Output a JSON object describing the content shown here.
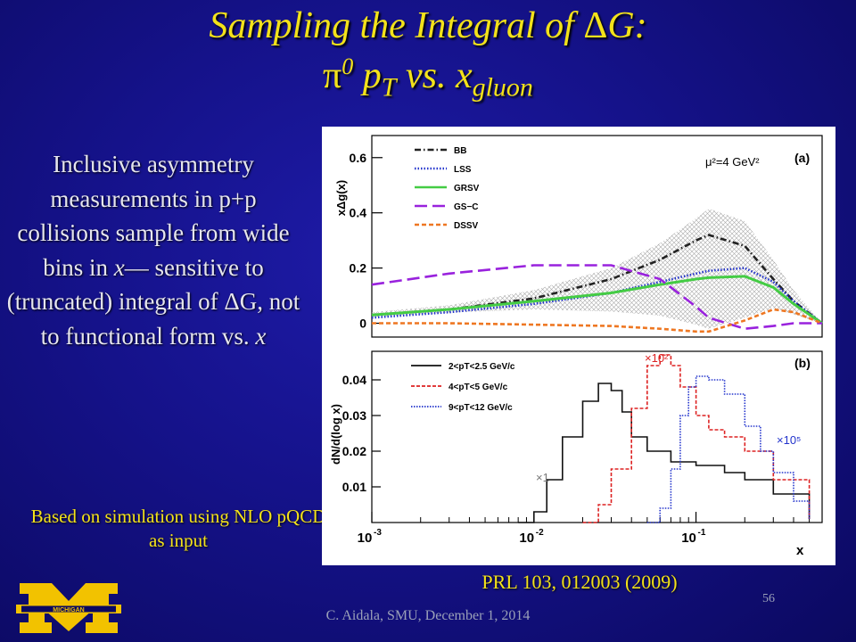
{
  "slide": {
    "title_line1_pre": "Sampling the Integral of ",
    "title_delta": "Δ",
    "title_line1_post": "G:",
    "title_pi": "π",
    "title_pi_sup": "0",
    "title_p": " p",
    "title_p_sub": "T",
    "title_vs": " vs. x",
    "title_x_sub": "gluon",
    "body_1": "Inclusive asymmetry measurements in p+p collisions sample from wide bins in ",
    "body_x1": "x",
    "body_2": "— sensitive to (truncated) integral of ",
    "body_delta": "Δ",
    "body_3": "G, not to functional form vs. ",
    "body_x2": "x",
    "note": "Based on simulation using NLO pQCD as input",
    "reference": "PRL 103, 012003 (2009)",
    "footer": "C. Aidala, SMU, December 1, 2014",
    "page_number": "56",
    "logo_text": "MICHIGAN",
    "logo_icon": "block-m-logo-icon"
  },
  "chart_data": [
    {
      "type": "line",
      "panel_label": "(a)",
      "ylabel": "xΔg(x)",
      "annotation": "μ²=4 GeV²",
      "x_scale": "log",
      "xlim": [
        0.001,
        0.6
      ],
      "ylim": [
        -0.05,
        0.68
      ],
      "yticks": [
        0,
        0.2,
        0.4,
        0.6
      ],
      "uncertainty_band": "hatched gray band around GRSV",
      "legend_position": "top-left",
      "x": [
        0.001,
        0.003,
        0.01,
        0.03,
        0.06,
        0.1,
        0.12,
        0.2,
        0.3,
        0.4,
        0.6
      ],
      "series": [
        {
          "name": "BB",
          "color": "#222222",
          "style": "dash-dot",
          "values": [
            0.03,
            0.05,
            0.09,
            0.16,
            0.23,
            0.3,
            0.32,
            0.28,
            0.16,
            0.08,
            0.0
          ]
        },
        {
          "name": "LSS",
          "color": "#2233cc",
          "style": "dotted",
          "values": [
            0.02,
            0.04,
            0.07,
            0.11,
            0.15,
            0.18,
            0.19,
            0.2,
            0.15,
            0.08,
            0.0
          ]
        },
        {
          "name": "GRSV",
          "color": "#44cc44",
          "style": "solid",
          "values": [
            0.03,
            0.05,
            0.08,
            0.11,
            0.14,
            0.16,
            0.165,
            0.17,
            0.13,
            0.07,
            0.0
          ]
        },
        {
          "name": "GS−C",
          "color": "#9922dd",
          "style": "long-dash",
          "values": [
            0.14,
            0.18,
            0.21,
            0.21,
            0.16,
            0.06,
            0.02,
            -0.02,
            -0.01,
            0.0,
            0.0
          ]
        },
        {
          "name": "DSSV",
          "color": "#ee7722",
          "style": "dashed",
          "values": [
            0.0,
            0.0,
            -0.005,
            -0.01,
            -0.02,
            -0.03,
            -0.03,
            0.01,
            0.05,
            0.04,
            0.0
          ]
        }
      ]
    },
    {
      "type": "line",
      "panel_label": "(b)",
      "ylabel": "dN/d(log x)",
      "xlabel": "x",
      "x_scale": "log",
      "xlim": [
        0.001,
        0.6
      ],
      "ylim": [
        0,
        0.048
      ],
      "yticks": [
        0.01,
        0.02,
        0.03,
        0.04
      ],
      "xtick_labels": [
        "10",
        "10",
        "10"
      ],
      "xtick_exponents": [
        "-3",
        "-2",
        "-1"
      ],
      "legend_position": "top-left",
      "scale_labels": [
        {
          "text": "×1",
          "series": "2<pT<2.5 GeV/c"
        },
        {
          "text": "×10²",
          "series": "4<pT<5 GeV/c"
        },
        {
          "text": "×10⁵",
          "series": "9<pT<12 GeV/c"
        }
      ],
      "series": [
        {
          "name": "2<pT<2.5 GeV/c",
          "color": "#111111",
          "style": "solid",
          "x": [
            0.008,
            0.01,
            0.012,
            0.015,
            0.02,
            0.025,
            0.03,
            0.035,
            0.04,
            0.05,
            0.07,
            0.1,
            0.15,
            0.2,
            0.3,
            0.5
          ],
          "values": [
            0.0,
            0.003,
            0.012,
            0.024,
            0.034,
            0.039,
            0.037,
            0.031,
            0.024,
            0.02,
            0.017,
            0.016,
            0.014,
            0.012,
            0.008,
            0.001
          ]
        },
        {
          "name": "4<pT<5 GeV/c",
          "color": "#dd2222",
          "style": "dashed",
          "x": [
            0.02,
            0.025,
            0.03,
            0.04,
            0.05,
            0.06,
            0.07,
            0.08,
            0.1,
            0.12,
            0.15,
            0.2,
            0.3,
            0.5
          ],
          "values": [
            0.0,
            0.005,
            0.015,
            0.032,
            0.044,
            0.047,
            0.044,
            0.038,
            0.03,
            0.026,
            0.024,
            0.02,
            0.012,
            0.001
          ]
        },
        {
          "name": "9<pT<12 GeV/c",
          "color": "#2233cc",
          "style": "dotted",
          "x": [
            0.05,
            0.06,
            0.07,
            0.08,
            0.09,
            0.1,
            0.12,
            0.15,
            0.2,
            0.25,
            0.3,
            0.4,
            0.5
          ],
          "values": [
            0.0,
            0.004,
            0.015,
            0.03,
            0.038,
            0.041,
            0.04,
            0.036,
            0.027,
            0.02,
            0.014,
            0.006,
            0.001
          ]
        }
      ]
    }
  ]
}
